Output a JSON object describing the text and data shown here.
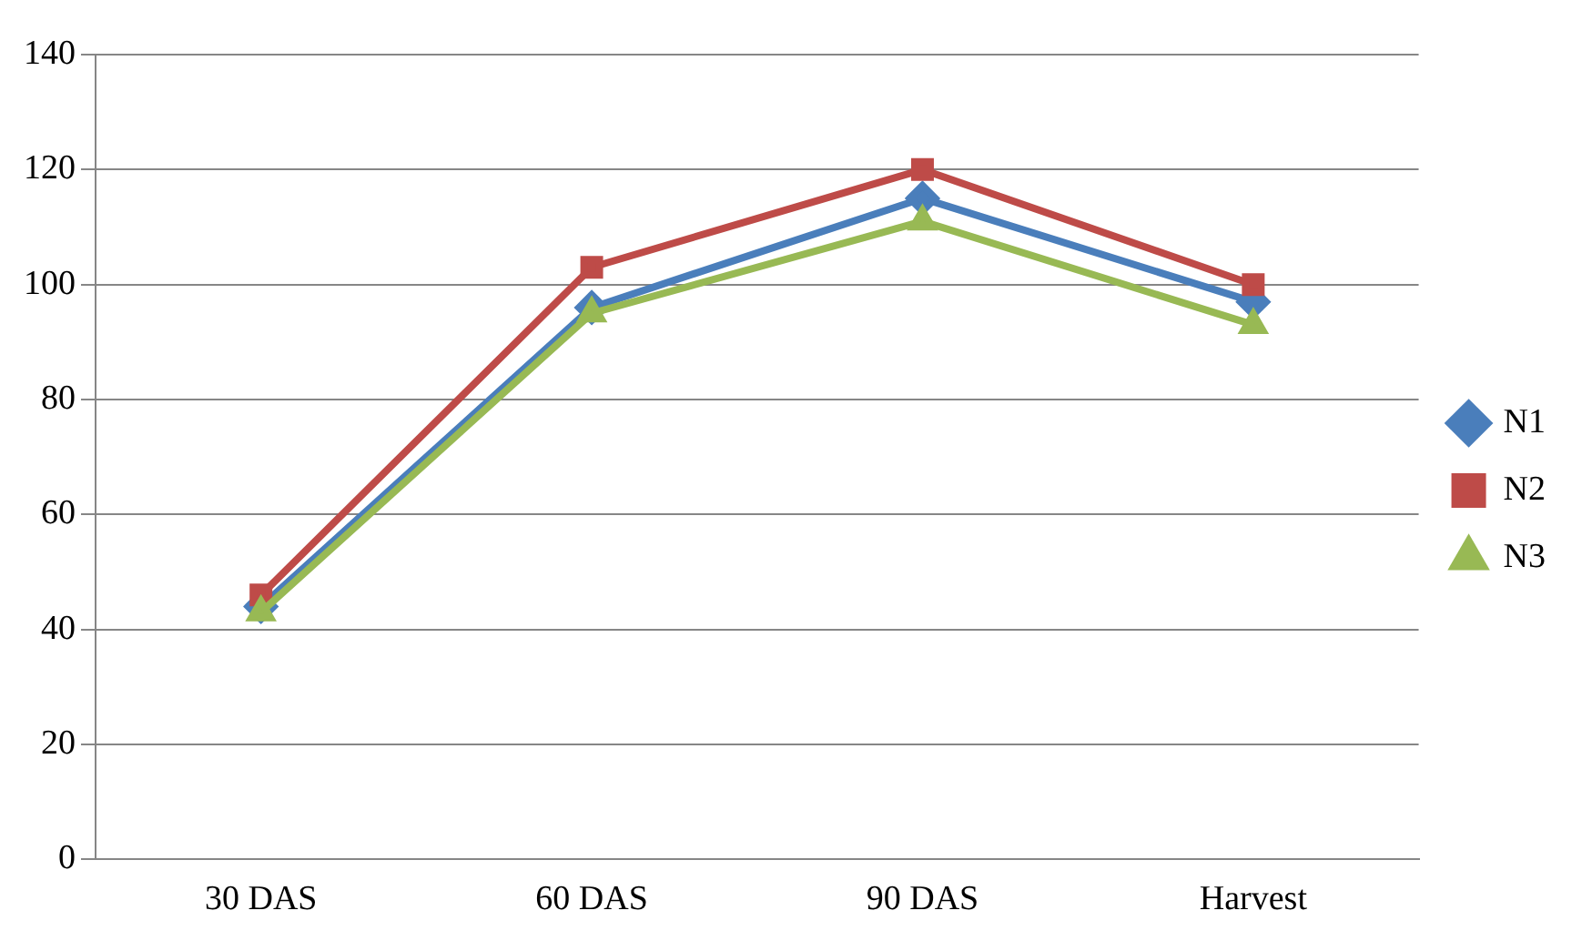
{
  "chart_data": {
    "type": "line",
    "categories": [
      "30 DAS",
      "60 DAS",
      "90 DAS",
      "Harvest"
    ],
    "series": [
      {
        "name": "N1",
        "color": "#4a7ebb",
        "marker": "diamond",
        "values": [
          44,
          96,
          115,
          97
        ]
      },
      {
        "name": "N2",
        "color": "#be4b48",
        "marker": "square",
        "values": [
          46,
          103,
          120,
          100
        ]
      },
      {
        "name": "N3",
        "color": "#98b954",
        "marker": "triangle",
        "values": [
          43,
          95,
          111,
          93
        ]
      }
    ],
    "ylim": [
      0,
      140
    ],
    "yticks": [
      0,
      20,
      40,
      60,
      80,
      100,
      120,
      140
    ],
    "grid": "y",
    "legend": "right",
    "line_style": "solid"
  }
}
